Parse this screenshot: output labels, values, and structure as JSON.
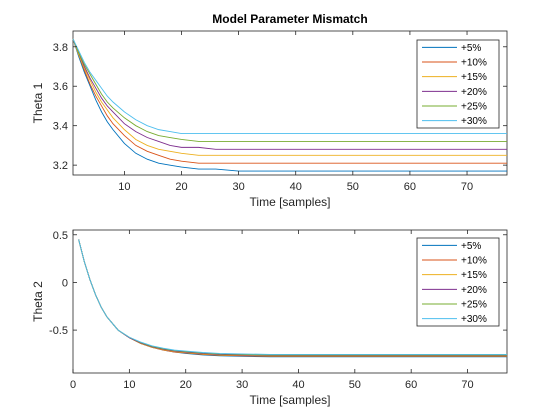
{
  "window": {
    "background": "#ffffff"
  },
  "colors": [
    "#0072bd",
    "#d95319",
    "#edb120",
    "#7e2f8e",
    "#77ac30",
    "#4dbeee"
  ],
  "chart_data": [
    {
      "type": "line",
      "title": "Model Parameter Mismatch",
      "xlabel": "Time [samples]",
      "ylabel": "Theta 1",
      "xlim": [
        1,
        77
      ],
      "ylim": [
        3.15,
        3.88
      ],
      "xticks": [
        10,
        20,
        30,
        40,
        50,
        60,
        70
      ],
      "yticks": [
        3.2,
        3.4,
        3.6,
        3.8
      ],
      "ytick_labels": [
        "3.2",
        "3.4",
        "3.6",
        "3.8"
      ],
      "legend_position": "top-right",
      "grid": false,
      "x": [
        1,
        2,
        3,
        4,
        5,
        6,
        7,
        8,
        10,
        12,
        14,
        16,
        18,
        20,
        23,
        26,
        30,
        35,
        40,
        50,
        60,
        77
      ],
      "series": [
        {
          "name": "+5%",
          "color": "#0072bd",
          "values": [
            3.84,
            3.75,
            3.67,
            3.6,
            3.53,
            3.47,
            3.42,
            3.38,
            3.31,
            3.26,
            3.23,
            3.21,
            3.2,
            3.19,
            3.18,
            3.18,
            3.17,
            3.17,
            3.17,
            3.17,
            3.17,
            3.17
          ]
        },
        {
          "name": "+10%",
          "color": "#d95319",
          "values": [
            3.84,
            3.76,
            3.68,
            3.61,
            3.55,
            3.5,
            3.45,
            3.41,
            3.35,
            3.3,
            3.27,
            3.25,
            3.23,
            3.22,
            3.21,
            3.21,
            3.21,
            3.21,
            3.21,
            3.21,
            3.21,
            3.21
          ]
        },
        {
          "name": "+15%",
          "color": "#edb120",
          "values": [
            3.84,
            3.76,
            3.69,
            3.63,
            3.57,
            3.52,
            3.48,
            3.44,
            3.38,
            3.33,
            3.3,
            3.28,
            3.27,
            3.26,
            3.25,
            3.25,
            3.25,
            3.25,
            3.25,
            3.25,
            3.25,
            3.25
          ]
        },
        {
          "name": "+20%",
          "color": "#7e2f8e",
          "values": [
            3.84,
            3.77,
            3.7,
            3.64,
            3.59,
            3.54,
            3.5,
            3.47,
            3.41,
            3.37,
            3.34,
            3.32,
            3.3,
            3.29,
            3.29,
            3.28,
            3.28,
            3.28,
            3.28,
            3.28,
            3.28,
            3.28
          ]
        },
        {
          "name": "+25%",
          "color": "#77ac30",
          "values": [
            3.84,
            3.77,
            3.71,
            3.66,
            3.61,
            3.56,
            3.52,
            3.49,
            3.44,
            3.4,
            3.37,
            3.35,
            3.34,
            3.33,
            3.32,
            3.32,
            3.32,
            3.32,
            3.32,
            3.32,
            3.32,
            3.32
          ]
        },
        {
          "name": "+30%",
          "color": "#4dbeee",
          "values": [
            3.84,
            3.78,
            3.72,
            3.67,
            3.63,
            3.59,
            3.55,
            3.52,
            3.47,
            3.43,
            3.4,
            3.38,
            3.37,
            3.36,
            3.36,
            3.36,
            3.36,
            3.36,
            3.36,
            3.36,
            3.36,
            3.36
          ]
        }
      ]
    },
    {
      "type": "line",
      "title": "",
      "xlabel": "Time [samples]",
      "ylabel": "Theta 2",
      "xlim": [
        0,
        77
      ],
      "ylim": [
        -0.95,
        0.55
      ],
      "xticks": [
        0,
        10,
        20,
        30,
        40,
        50,
        60,
        70
      ],
      "yticks": [
        -0.5,
        0,
        0.5
      ],
      "ytick_labels": [
        "-0.5",
        "0",
        "0.5"
      ],
      "legend_position": "top-right",
      "grid": false,
      "x": [
        1,
        2,
        3,
        4,
        5,
        6,
        8,
        10,
        12,
        14,
        16,
        18,
        20,
        23,
        26,
        30,
        35,
        40,
        50,
        60,
        77
      ],
      "series": [
        {
          "name": "+5%",
          "color": "#0072bd",
          "values": [
            0.45,
            0.22,
            0.03,
            -0.13,
            -0.26,
            -0.36,
            -0.5,
            -0.58,
            -0.64,
            -0.68,
            -0.71,
            -0.73,
            -0.745,
            -0.76,
            -0.77,
            -0.775,
            -0.78,
            -0.78,
            -0.78,
            -0.78,
            -0.78
          ]
        },
        {
          "name": "+10%",
          "color": "#d95319",
          "values": [
            0.45,
            0.22,
            0.03,
            -0.13,
            -0.26,
            -0.36,
            -0.5,
            -0.58,
            -0.64,
            -0.68,
            -0.71,
            -0.73,
            -0.74,
            -0.755,
            -0.765,
            -0.77,
            -0.775,
            -0.775,
            -0.775,
            -0.775,
            -0.775
          ]
        },
        {
          "name": "+15%",
          "color": "#edb120",
          "values": [
            0.45,
            0.22,
            0.03,
            -0.13,
            -0.26,
            -0.36,
            -0.5,
            -0.58,
            -0.64,
            -0.68,
            -0.705,
            -0.725,
            -0.735,
            -0.75,
            -0.76,
            -0.765,
            -0.77,
            -0.77,
            -0.77,
            -0.77,
            -0.77
          ]
        },
        {
          "name": "+20%",
          "color": "#7e2f8e",
          "values": [
            0.45,
            0.22,
            0.03,
            -0.13,
            -0.26,
            -0.36,
            -0.5,
            -0.58,
            -0.635,
            -0.675,
            -0.7,
            -0.72,
            -0.73,
            -0.745,
            -0.755,
            -0.76,
            -0.765,
            -0.765,
            -0.765,
            -0.765,
            -0.765
          ]
        },
        {
          "name": "+25%",
          "color": "#77ac30",
          "values": [
            0.45,
            0.22,
            0.03,
            -0.13,
            -0.26,
            -0.36,
            -0.5,
            -0.575,
            -0.63,
            -0.67,
            -0.695,
            -0.715,
            -0.725,
            -0.74,
            -0.75,
            -0.755,
            -0.76,
            -0.76,
            -0.76,
            -0.76,
            -0.76
          ]
        },
        {
          "name": "+30%",
          "color": "#4dbeee",
          "values": [
            0.45,
            0.22,
            0.03,
            -0.13,
            -0.26,
            -0.36,
            -0.5,
            -0.575,
            -0.625,
            -0.665,
            -0.69,
            -0.71,
            -0.72,
            -0.735,
            -0.745,
            -0.75,
            -0.755,
            -0.755,
            -0.755,
            -0.755,
            -0.755
          ]
        }
      ]
    }
  ]
}
